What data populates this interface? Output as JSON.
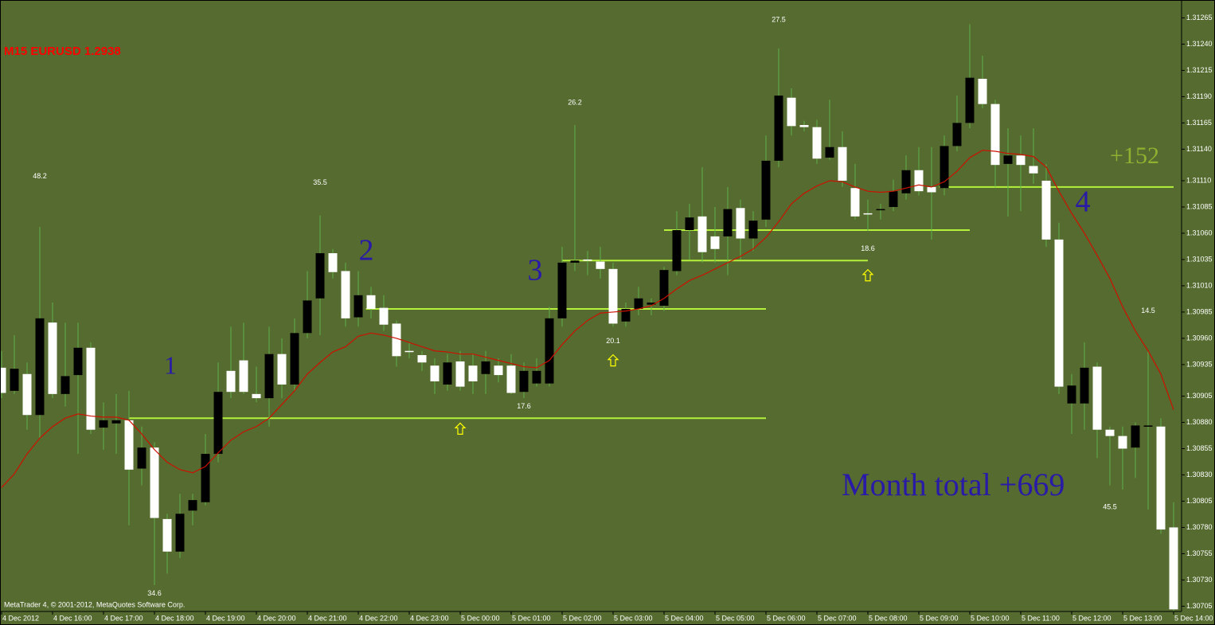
{
  "chart_data": {
    "type": "candlestick",
    "title": "M15 EURUSD 1.2938",
    "footer": "MetaTrader 4, © 2001-2012, MetaQuotes Software Corp.",
    "texts": {
      "wave1": "1",
      "wave2": "2",
      "wave3": "3",
      "wave4": "4",
      "gain": "+152",
      "month_total": "Month total +669"
    },
    "categories": [
      "4 Dec 2012",
      null,
      null,
      null,
      "4 Dec 16:00",
      null,
      null,
      null,
      "4 Dec 17:00",
      null,
      null,
      null,
      "4 Dec 18:00",
      null,
      null,
      null,
      "4 Dec 19:00",
      null,
      null,
      null,
      "4 Dec 20:00",
      null,
      null,
      null,
      "4 Dec 21:00",
      null,
      null,
      null,
      "4 Dec 22:00",
      null,
      null,
      null,
      "4 Dec 23:00",
      null,
      null,
      null,
      "5 Dec 00:00",
      null,
      null,
      null,
      "5 Dec 01:00",
      null,
      null,
      null,
      "5 Dec 02:00",
      null,
      null,
      null,
      "5 Dec 03:00",
      null,
      null,
      null,
      "5 Dec 04:00",
      null,
      null,
      null,
      "5 Dec 05:00",
      null,
      null,
      null,
      "5 Dec 06:00",
      null,
      null,
      null,
      "5 Dec 07:00",
      null,
      null,
      null,
      "5 Dec 08:00",
      null,
      null,
      null,
      "5 Dec 09:00",
      null,
      null,
      null,
      "5 Dec 10:00",
      null,
      null,
      null,
      "5 Dec 11:00",
      null,
      null,
      null,
      "5 Dec 12:00",
      null,
      null,
      null,
      "5 Dec 13:00",
      null,
      null,
      null,
      "5 Dec 14:00"
    ],
    "open": [
      1.30932,
      1.3091,
      1.30926,
      1.30887,
      1.30975,
      1.30907,
      1.30925,
      1.30951,
      1.30875,
      1.30879,
      1.30882,
      1.30836,
      1.30856,
      1.30788,
      1.30757,
      1.30796,
      1.30804,
      1.3085,
      1.30929,
      1.30939,
      1.30907,
      1.30903,
      1.30945,
      1.30916,
      1.30965,
      1.30998,
      1.31041,
      1.31024,
      1.3098,
      1.31001,
      1.30989,
      1.30974,
      1.30948,
      1.30944,
      1.30934,
      1.30916,
      1.30938,
      1.30934,
      1.30926,
      1.30934,
      1.30934,
      1.30909,
      1.30917,
      1.30917,
      1.30979,
      1.31032,
      1.31035,
      1.31033,
      1.31026,
      1.30976,
      1.30988,
      1.30992,
      1.30991,
      1.31024,
      1.31063,
      1.31076,
      1.31057,
      1.31057,
      1.31084,
      1.31055,
      1.31073,
      1.31129,
      1.31189,
      1.31163,
      1.31161,
      1.31132,
      1.31142,
      1.31103,
      1.31079,
      1.31082,
      1.31085,
      1.31098,
      1.3112,
      1.31104,
      1.31103,
      1.31143,
      1.31165,
      1.31207,
      1.31183,
      1.31126,
      1.31134,
      1.31124,
      1.3111,
      1.31054,
      1.30898,
      1.30898,
      1.30933,
      1.30873,
      1.30867,
      1.30856,
      1.30876,
      1.30876,
      1.3078
    ],
    "high": [
      1.30948,
      1.30963,
      1.30937,
      1.31066,
      1.30994,
      1.30975,
      1.30975,
      1.30956,
      1.30899,
      1.30907,
      1.3091,
      1.30876,
      1.30861,
      1.30793,
      1.30812,
      1.30812,
      1.30869,
      1.30937,
      1.30971,
      1.30975,
      1.30933,
      1.30971,
      1.3096,
      1.30979,
      1.31024,
      1.31077,
      1.31045,
      1.31032,
      1.31024,
      1.31009,
      1.31001,
      1.30977,
      1.30956,
      1.30948,
      1.30941,
      1.30945,
      1.30948,
      1.30945,
      1.30948,
      1.30941,
      1.30945,
      1.30937,
      1.30941,
      1.3099,
      1.31047,
      1.31163,
      1.31043,
      1.31047,
      1.31032,
      1.30994,
      1.31009,
      1.30998,
      1.31028,
      1.31081,
      1.31088,
      1.31123,
      1.31085,
      1.31104,
      1.31092,
      1.31081,
      1.31153,
      1.31236,
      1.31198,
      1.31167,
      1.31168,
      1.31187,
      1.31157,
      1.31126,
      1.31092,
      1.31088,
      1.31111,
      1.31134,
      1.31142,
      1.31142,
      1.31153,
      1.31191,
      1.31259,
      1.31229,
      1.31187,
      1.3116,
      1.31153,
      1.3116,
      1.31126,
      1.3107,
      1.30926,
      1.30956,
      1.30937,
      1.30876,
      1.30876,
      1.3088,
      1.30948,
      1.30884,
      1.30804
    ],
    "low": [
      1.30903,
      1.30907,
      1.30873,
      1.30865,
      1.30903,
      1.30895,
      1.3085,
      1.30869,
      1.30854,
      1.3085,
      1.30782,
      1.3082,
      1.30725,
      1.30736,
      1.30751,
      1.30782,
      1.30801,
      1.30842,
      1.30903,
      1.30907,
      1.30899,
      1.30876,
      1.30903,
      1.3091,
      1.3096,
      1.30963,
      1.31017,
      1.30971,
      1.30971,
      1.30979,
      1.30967,
      1.30933,
      1.30941,
      1.30929,
      1.30907,
      1.3091,
      1.3091,
      1.30907,
      1.30907,
      1.30918,
      1.30907,
      1.30903,
      1.30914,
      1.30914,
      1.30971,
      1.31024,
      1.3102,
      1.31017,
      1.30971,
      1.30971,
      1.30982,
      1.30982,
      1.30986,
      1.3102,
      1.31035,
      1.31032,
      1.31032,
      1.3102,
      1.31035,
      1.31043,
      1.31066,
      1.31123,
      1.31153,
      1.31157,
      1.31126,
      1.3113,
      1.31104,
      1.31073,
      1.31062,
      1.31073,
      1.31081,
      1.31092,
      1.31096,
      1.31054,
      1.31096,
      1.31138,
      1.3116,
      1.31179,
      1.31104,
      1.31076,
      1.31081,
      1.31107,
      1.31047,
      1.30907,
      1.30869,
      1.30873,
      1.30846,
      1.3082,
      1.30816,
      1.30827,
      1.30797,
      1.30774,
      1.307
    ],
    "close": [
      1.30908,
      1.30931,
      1.30887,
      1.30979,
      1.30907,
      1.30924,
      1.30951,
      1.30873,
      1.30882,
      1.30882,
      1.30835,
      1.30856,
      1.30789,
      1.30757,
      1.30793,
      1.30806,
      1.3085,
      1.30909,
      1.30909,
      1.30909,
      1.30903,
      1.30945,
      1.30916,
      1.30965,
      1.30996,
      1.31041,
      1.31023,
      1.30979,
      1.31001,
      1.30988,
      1.30973,
      1.30943,
      1.30947,
      1.30937,
      1.30919,
      1.30937,
      1.30914,
      1.30919,
      1.30938,
      1.30925,
      1.30908,
      1.30929,
      1.30929,
      1.30979,
      1.31032,
      1.31034,
      1.31034,
      1.31026,
      1.30974,
      1.30988,
      1.30998,
      1.30994,
      1.31025,
      1.31063,
      1.31075,
      1.31042,
      1.31045,
      1.31083,
      1.31055,
      1.31072,
      1.31129,
      1.31191,
      1.31162,
      1.31161,
      1.31131,
      1.31142,
      1.3111,
      1.31076,
      1.31078,
      1.31083,
      1.311,
      1.3112,
      1.311,
      1.31099,
      1.31143,
      1.31165,
      1.31208,
      1.31183,
      1.31125,
      1.31134,
      1.31125,
      1.31117,
      1.31054,
      1.30914,
      1.30915,
      1.30932,
      1.30873,
      1.30867,
      1.30855,
      1.30877,
      1.30877,
      1.30778,
      1.30702
    ],
    "moving_average": {
      "color": "#cc1100",
      "values": [
        1.30818,
        1.30831,
        1.3085,
        1.30865,
        1.30876,
        1.30884,
        1.30888,
        1.30886,
        1.30885,
        1.30885,
        1.30882,
        1.30869,
        1.30854,
        1.30842,
        1.30835,
        1.30832,
        1.30838,
        1.30851,
        1.30863,
        1.30871,
        1.30876,
        1.30884,
        1.30897,
        1.3091,
        1.30926,
        1.30937,
        1.30947,
        1.30952,
        1.30962,
        1.30965,
        1.30963,
        1.3096,
        1.30956,
        1.30952,
        1.30948,
        1.30947,
        1.30945,
        1.30945,
        1.30942,
        1.30939,
        1.30936,
        1.30933,
        1.30932,
        1.30939,
        1.30954,
        1.30967,
        1.30977,
        1.30984,
        1.30985,
        1.30986,
        1.30988,
        1.30991,
        1.30998,
        1.31007,
        1.31015,
        1.3102,
        1.31026,
        1.31032,
        1.31038,
        1.31045,
        1.31056,
        1.31071,
        1.31088,
        1.31098,
        1.31105,
        1.3111,
        1.31109,
        1.31104,
        1.311,
        1.31099,
        1.311,
        1.31103,
        1.31106,
        1.31104,
        1.31109,
        1.31119,
        1.31132,
        1.31139,
        1.31138,
        1.31136,
        1.31135,
        1.31133,
        1.31123,
        1.311,
        1.31079,
        1.3106,
        1.31039,
        1.31017,
        1.3099,
        1.30967,
        1.30948,
        1.30926,
        1.30892
      ]
    },
    "levels": [
      {
        "value": 1.30884,
        "start": 10,
        "end": 60
      },
      {
        "value": 1.30988,
        "start": 28.6,
        "end": 60
      },
      {
        "value": 1.31034,
        "start": 44,
        "end": 68
      },
      {
        "value": 1.31063,
        "start": 52,
        "end": 76
      },
      {
        "value": 1.31104,
        "start": 73.6,
        "end": 92
      }
    ],
    "level_color": "#b4f03c",
    "annotations": [
      {
        "text": "48.2",
        "index": 3,
        "price": 1.31114
      },
      {
        "text": "34.6",
        "index": 12,
        "price": 1.30717
      },
      {
        "text": "35.5",
        "index": 25,
        "price": 1.31108
      },
      {
        "text": "17.6",
        "index": 41,
        "price": 1.30895
      },
      {
        "text": "26.2",
        "index": 45,
        "price": 1.31184
      },
      {
        "text": "20.1",
        "index": 48,
        "price": 1.30957
      },
      {
        "text": "27.5",
        "index": 61,
        "price": 1.31263
      },
      {
        "text": "18.6",
        "index": 68,
        "price": 1.31045
      },
      {
        "text": "14.5",
        "index": 90,
        "price": 1.30986
      },
      {
        "text": "45.5",
        "index": 87,
        "price": 1.30799
      }
    ],
    "arrows": [
      {
        "index": 36,
        "price": 1.30874
      },
      {
        "index": 48,
        "price": 1.30939
      },
      {
        "index": 68,
        "price": 1.3102
      }
    ],
    "arrow_color": "#ffff00",
    "bull_color": "#000000",
    "bear_color": "#ffffff",
    "wick_color": "#5fb04a",
    "ylim": [
      1.307,
      1.31282
    ],
    "yticks": [
      1.31265,
      {
        "value": 1.3124,
        "label": "1.31240"
      },
      1.31215,
      {
        "value": 1.3119,
        "label": "1.31190"
      },
      1.31165,
      {
        "value": 1.3114,
        "label": "1.31140"
      },
      {
        "value": 1.3111,
        "label": "1.31110"
      },
      1.31085,
      {
        "value": 1.3106,
        "label": "1.31060"
      },
      1.31035,
      {
        "value": 1.3101,
        "label": "1.31010"
      },
      1.30985,
      {
        "value": 1.3096,
        "label": "1.30960"
      },
      1.30935,
      1.30905,
      {
        "value": 1.3088,
        "label": "1.30880"
      },
      1.30855,
      {
        "value": 1.3083,
        "label": "1.30830"
      },
      1.30805,
      {
        "value": 1.3078,
        "label": "1.30780"
      },
      1.30755,
      {
        "value": 1.3073,
        "label": "1.30730"
      },
      1.30705
    ],
    "grid": false
  }
}
